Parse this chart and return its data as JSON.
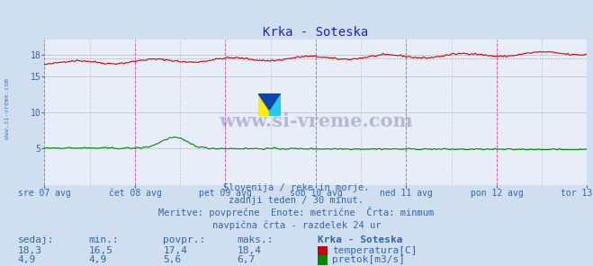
{
  "title": "Krka - Soteska",
  "bg_color": "#d0dff0",
  "plot_bg_color": "#e8eef8",
  "title_color": "#2222cc",
  "axis_label_color": "#3366aa",
  "text_color": "#3366aa",
  "grid_color": "#b8c8dc",
  "x_labels": [
    "sre 07 avg",
    "čet 08 avg",
    "pet 09 avg",
    "sob 10 avg",
    "ned 11 avg",
    "pon 12 avg",
    "tor 13 avg"
  ],
  "y_min": 0,
  "y_max": 20,
  "y_ticks": [
    5,
    10,
    15,
    18
  ],
  "y_tick_labels": [
    "5",
    "10",
    "15",
    "18"
  ],
  "temp_color": "#cc0000",
  "flow_color": "#008800",
  "avg_line_color": "#dd8888",
  "avg_line_y": 17.4,
  "temp_min": 16.5,
  "temp_max": 18.4,
  "temp_avg": 17.4,
  "temp_now": 18.3,
  "flow_min": 4.9,
  "flow_max": 6.7,
  "flow_avg": 5.6,
  "flow_now": 4.9,
  "watermark": "www.si-vreme.com",
  "subtitle1": "Slovenija / reke in morje.",
  "subtitle2": "zadnji teden / 30 minut.",
  "subtitle3": "Meritve: povprečne  Enote: metrične  Črta: minmum",
  "subtitle4": "navpična črta - razdelek 24 ur",
  "legend_title": "Krka - Soteska",
  "col1": "sedaj:",
  "col2": "min.:",
  "col3": "povpr.:",
  "col4": "maks.:",
  "vline_color_major": "#cc44cc",
  "vline_color_minor": "#aaaaaa",
  "n_points": 336,
  "left_label": "www.si-vreme.com"
}
